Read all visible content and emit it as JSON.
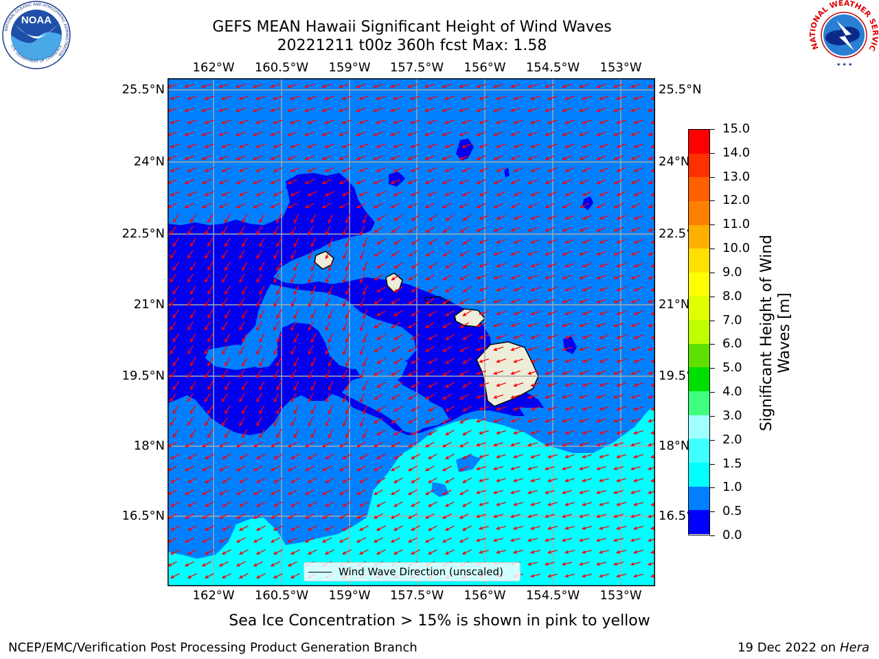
{
  "title_line1": "GEFS MEAN Hawaii Significant Height of Wind Waves",
  "title_line2": "20221211 t00z 360h fcst   Max: 1.58",
  "longitude_labels": [
    "162°W",
    "160.5°W",
    "159°W",
    "157.5°W",
    "156°W",
    "154.5°W",
    "153°W"
  ],
  "latitude_labels": [
    "25.5°N",
    "24°N",
    "22.5°N",
    "21°N",
    "19.5°N",
    "18°N",
    "16.5°N"
  ],
  "legend_label": "Wind Wave Direction (unscaled)",
  "colorbar": {
    "label_line1": "Significant Height of Wind",
    "label_line2": "Waves [m]",
    "ticks": [
      "0.0",
      "0.5",
      "1.0",
      "1.5",
      "2.0",
      "3.0",
      "4.0",
      "5.0",
      "6.0",
      "7.0",
      "8.0",
      "9.0",
      "10.0",
      "11.0",
      "12.0",
      "13.0",
      "14.0",
      "15.0"
    ],
    "colors": [
      "#0000ff",
      "#0080ff",
      "#00ffff",
      "#40ffff",
      "#a0ffff",
      "#40ff80",
      "#00e000",
      "#60e000",
      "#c0ff00",
      "#e0ff00",
      "#ffff00",
      "#ffe000",
      "#ffb000",
      "#ff8000",
      "#ff6000",
      "#ff3000",
      "#ff0000"
    ]
  },
  "map_colors": {
    "deep": "#0000ee",
    "mid": "#0080ff",
    "cyan": "#00ffff",
    "land": "#eeedd9",
    "arrow": "#ff0000",
    "grid": "#aaaaaa"
  },
  "footnote": "Sea Ice Concentration > 15% is shown in pink to yellow",
  "credit_left": "NCEP/EMC/Verification Post Processing Product Generation Branch",
  "credit_right_date": "19 Dec 2022 on",
  "credit_right_host": "Hera",
  "logo_noaa": {
    "text": "NOAA",
    "ring_text": "NATIONAL OCEANIC AND ATMOSPHERIC ADMINISTRATION",
    "dept_text": "U.S. DEPARTMENT OF COMMERCE"
  },
  "logo_nws": {
    "ring_text": "NATIONAL WEATHER SERVICE"
  }
}
